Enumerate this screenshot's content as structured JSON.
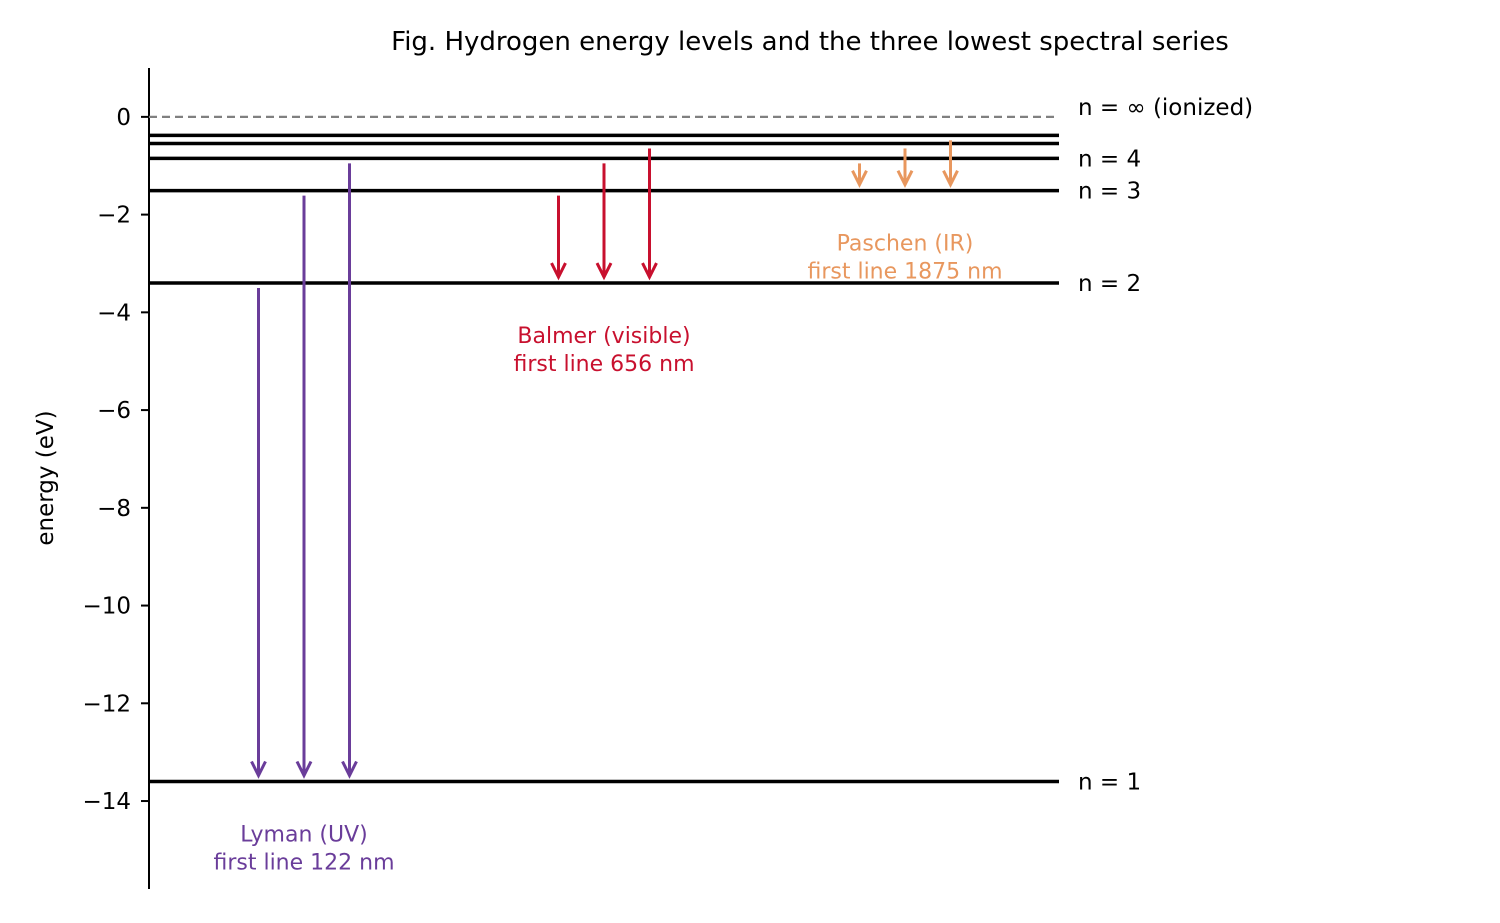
{
  "title": "Fig. Hydrogen energy levels and the three lowest spectral series",
  "y_axis": {
    "label": "energy (eV)",
    "range": [
      -15.8,
      1.0
    ],
    "ticks": [
      {
        "value": 0,
        "label": "0"
      },
      {
        "value": -2,
        "label": "−2"
      },
      {
        "value": -4,
        "label": "−4"
      },
      {
        "value": -6,
        "label": "−6"
      },
      {
        "value": -8,
        "label": "−8"
      },
      {
        "value": -10,
        "label": "−10"
      },
      {
        "value": -12,
        "label": "−12"
      },
      {
        "value": -14,
        "label": "−14"
      }
    ]
  },
  "levels": [
    {
      "n": 1,
      "energy": -13.6,
      "label": "n = 1"
    },
    {
      "n": 2,
      "energy": -3.4,
      "label": "n = 2"
    },
    {
      "n": 3,
      "energy": -1.51,
      "label": "n = 3"
    },
    {
      "n": 4,
      "energy": -0.85,
      "label": "n = 4"
    },
    {
      "n": 5,
      "energy": -0.544,
      "label": ""
    },
    {
      "n": 6,
      "energy": -0.378,
      "label": ""
    }
  ],
  "ionization": {
    "energy": 0,
    "label": "n = ∞ (ionized)",
    "color": "#808080"
  },
  "series": [
    {
      "name": "Lyman (UV)",
      "detail": "first line 122 nm",
      "color": "#6a3d9a",
      "final_n": 1,
      "transitions": [
        {
          "from": 2,
          "to": 1
        },
        {
          "from": 3,
          "to": 1
        },
        {
          "from": 4,
          "to": 1
        }
      ]
    },
    {
      "name": "Balmer (visible)",
      "detail": "first line 656 nm",
      "color": "#c8102e",
      "final_n": 2,
      "transitions": [
        {
          "from": 3,
          "to": 2
        },
        {
          "from": 4,
          "to": 2
        },
        {
          "from": 5,
          "to": 2
        }
      ]
    },
    {
      "name": "Paschen (IR)",
      "detail": "first line 1875 nm",
      "color": "#e8975e",
      "final_n": 3,
      "transitions": [
        {
          "from": 4,
          "to": 3
        },
        {
          "from": 5,
          "to": 3
        },
        {
          "from": 6,
          "to": 3
        }
      ]
    }
  ]
}
